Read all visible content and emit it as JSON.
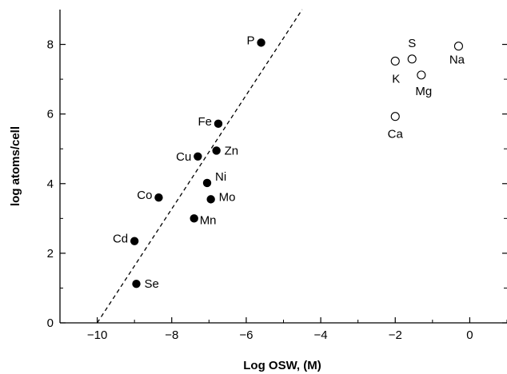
{
  "chart_data": {
    "type": "scatter",
    "xlabel": "Log OSW, (M)",
    "ylabel": "log atoms/cell",
    "xlim": [
      -11.0,
      1.0
    ],
    "ylim": [
      0,
      9
    ],
    "x_ticks": [
      -10,
      -8,
      -6,
      -4,
      -2,
      0
    ],
    "x_tick_labels": [
      "−10",
      "−8",
      "−6",
      "−4",
      "−2",
      "0"
    ],
    "y_ticks": [
      0,
      2,
      4,
      6,
      8
    ],
    "y_tick_labels": [
      "0",
      "2",
      "4",
      "6",
      "8"
    ],
    "grid": false,
    "series": [
      {
        "marker": "filled-circle",
        "color": "#000000",
        "points": [
          {
            "label": "P",
            "x": -5.6,
            "y": 8.05
          },
          {
            "label": "Fe",
            "x": -6.75,
            "y": 5.72
          },
          {
            "label": "Zn",
            "x": -6.8,
            "y": 4.95
          },
          {
            "label": "Cu",
            "x": -7.3,
            "y": 4.78
          },
          {
            "label": "Ni",
            "x": -7.05,
            "y": 4.02
          },
          {
            "label": "Co",
            "x": -8.35,
            "y": 3.6
          },
          {
            "label": "Mo",
            "x": -6.95,
            "y": 3.55
          },
          {
            "label": "Mn",
            "x": -7.4,
            "y": 3.0
          },
          {
            "label": "Cd",
            "x": -9.0,
            "y": 2.35
          },
          {
            "label": "Se",
            "x": -8.95,
            "y": 1.12
          }
        ]
      },
      {
        "marker": "open-circle",
        "color": "#000000",
        "points": [
          {
            "label": "Na",
            "x": -0.3,
            "y": 7.95
          },
          {
            "label": "S",
            "x": -1.55,
            "y": 7.58
          },
          {
            "label": "K",
            "x": -2.0,
            "y": 7.52
          },
          {
            "label": "Mg",
            "x": -1.3,
            "y": 7.12
          },
          {
            "label": "Ca",
            "x": -2.0,
            "y": 5.93
          }
        ]
      }
    ],
    "fit_line": {
      "style": "dashed",
      "color": "#000000",
      "x": [
        -10.0,
        -4.5
      ],
      "y": [
        0.0,
        9.0
      ]
    }
  }
}
